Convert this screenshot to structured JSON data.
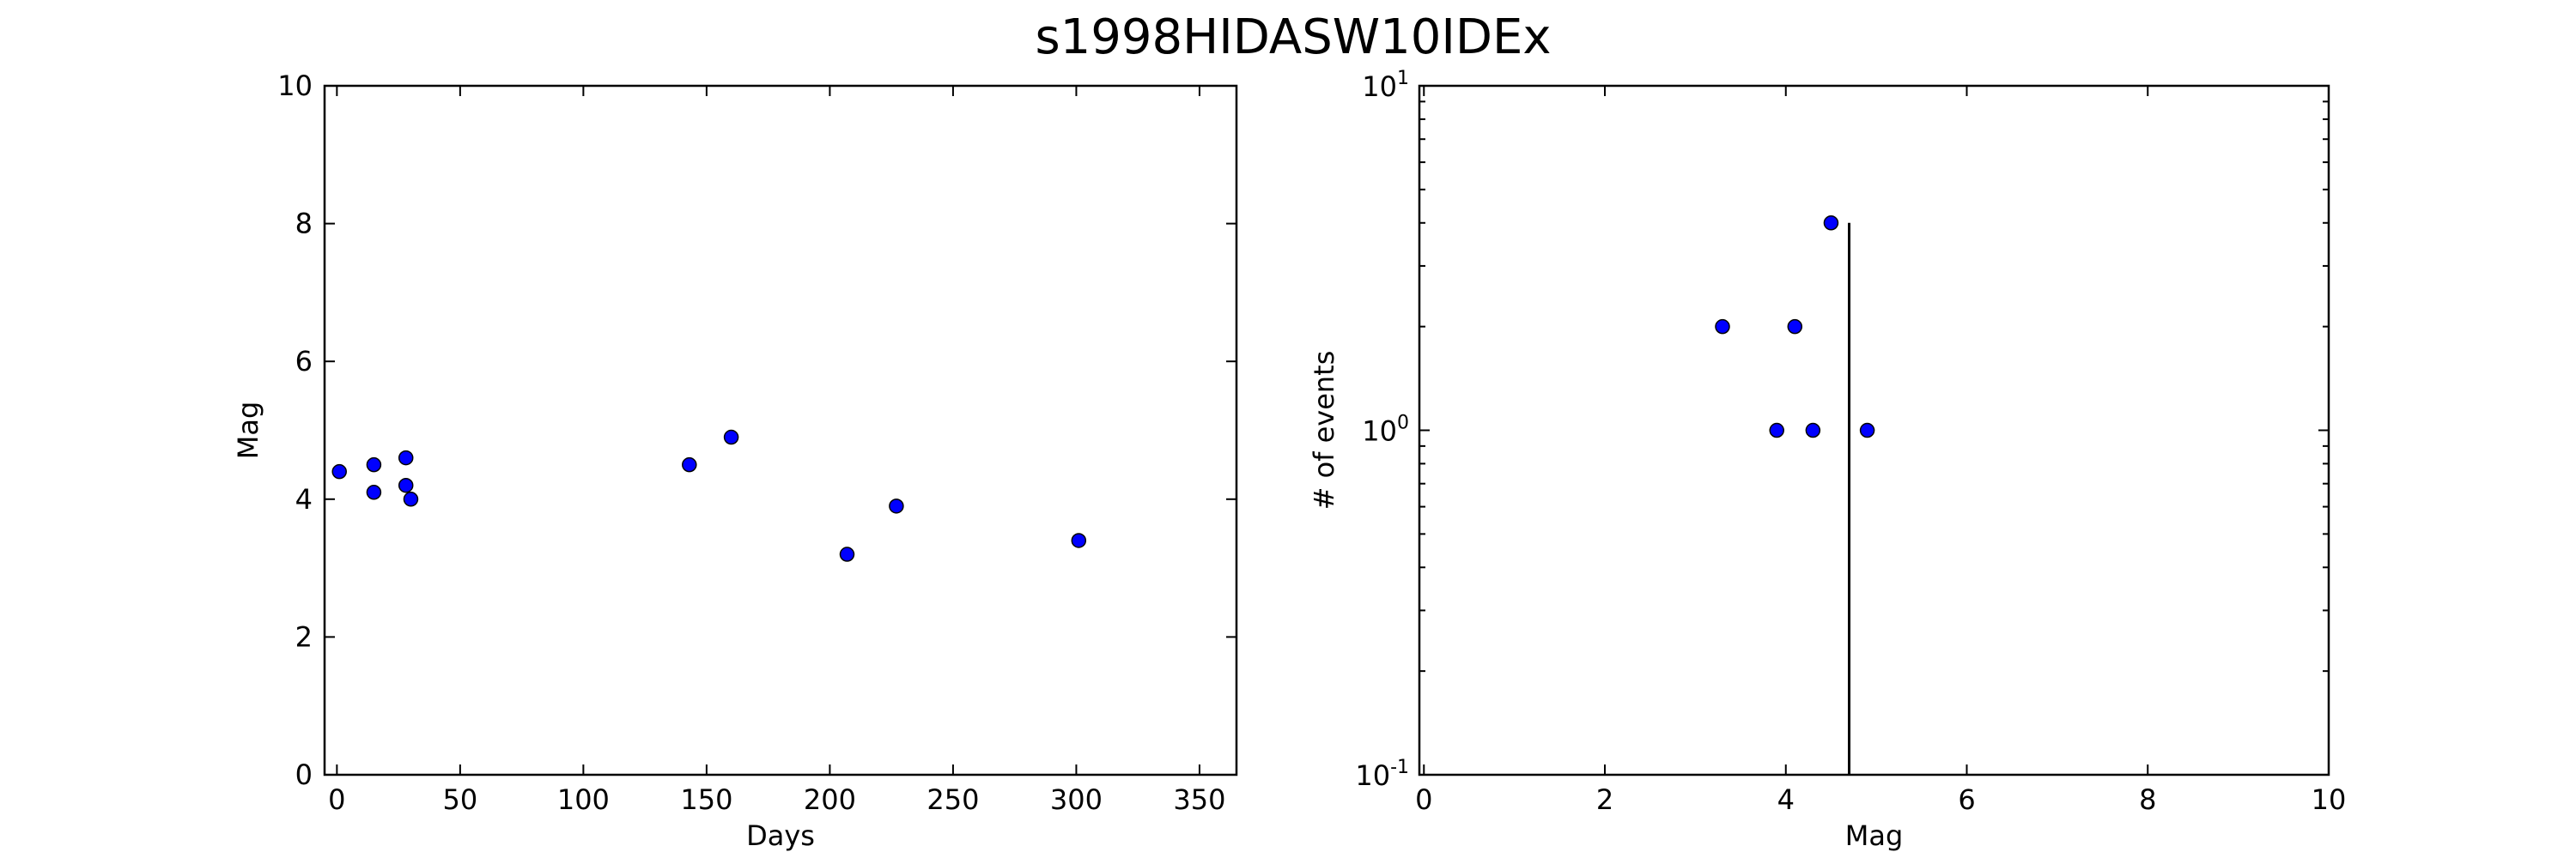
{
  "title": "s1998HIDASW10IDEx",
  "colors": {
    "marker_fill": "#0000ff",
    "marker_edge": "#000000",
    "axes": "#000000",
    "background": "#ffffff"
  },
  "chart_data": [
    {
      "type": "scatter",
      "xlabel": "Days",
      "ylabel": "Mag",
      "xlim": [
        -5,
        365
      ],
      "ylim": [
        0,
        10
      ],
      "xscale": "linear",
      "yscale": "linear",
      "grid": false,
      "x_ticks": [
        0,
        50,
        100,
        150,
        200,
        250,
        300,
        350
      ],
      "y_ticks": [
        0,
        2,
        4,
        6,
        8,
        10
      ],
      "x_tick_labels": [
        "0",
        "50",
        "100",
        "150",
        "200",
        "250",
        "300",
        "350"
      ],
      "y_tick_labels": [
        "0",
        "2",
        "4",
        "6",
        "8",
        "10"
      ],
      "points": [
        {
          "x": 1,
          "y": 4.4
        },
        {
          "x": 15,
          "y": 4.5
        },
        {
          "x": 15,
          "y": 4.1
        },
        {
          "x": 28,
          "y": 4.6
        },
        {
          "x": 28,
          "y": 4.2
        },
        {
          "x": 30,
          "y": 4.0
        },
        {
          "x": 143,
          "y": 4.5
        },
        {
          "x": 160,
          "y": 4.9
        },
        {
          "x": 207,
          "y": 3.2
        },
        {
          "x": 227,
          "y": 3.9
        },
        {
          "x": 301,
          "y": 3.4
        }
      ]
    },
    {
      "type": "scatter",
      "xlabel": "Mag",
      "ylabel": "# of events",
      "xlim": [
        -0.05,
        10
      ],
      "ylim": [
        0.1,
        10
      ],
      "xscale": "linear",
      "yscale": "log",
      "grid": false,
      "x_ticks": [
        0,
        2,
        4,
        6,
        8,
        10
      ],
      "x_tick_labels": [
        "0",
        "2",
        "4",
        "6",
        "8",
        "10"
      ],
      "y_major_ticks": [
        {
          "value": 0.1,
          "base": "10",
          "exp": "-1"
        },
        {
          "value": 1,
          "base": "10",
          "exp": "0"
        },
        {
          "value": 10,
          "base": "10",
          "exp": "1"
        }
      ],
      "points": [
        {
          "x": 3.3,
          "y": 2
        },
        {
          "x": 3.9,
          "y": 1
        },
        {
          "x": 4.1,
          "y": 2
        },
        {
          "x": 4.3,
          "y": 1
        },
        {
          "x": 4.5,
          "y": 4
        },
        {
          "x": 4.9,
          "y": 1
        }
      ],
      "vertical_line": {
        "x": 4.7,
        "y_from": 0.1,
        "y_to": 4
      }
    }
  ]
}
